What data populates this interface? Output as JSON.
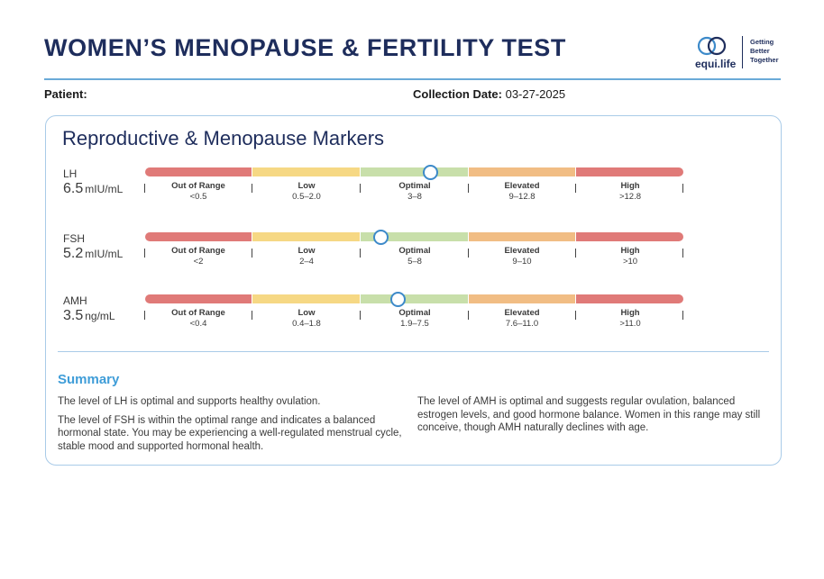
{
  "header": {
    "title": "WOMEN’S MENOPAUSE & FERTILITY TEST",
    "logo_word": "equi.life",
    "logo_tagline": [
      "Getting",
      "Better",
      "Together"
    ]
  },
  "patient": {
    "label": "Patient:",
    "value": ""
  },
  "collection": {
    "label": "Collection Date:",
    "value": "03-27-2025"
  },
  "section": {
    "title": "Reproductive & Menopause Markers"
  },
  "zone_labels": [
    "Out of Range",
    "Low",
    "Optimal",
    "Elevated",
    "High"
  ],
  "markers": [
    {
      "name": "LH",
      "value": "6.5",
      "unit": "mIU/mL",
      "ranges": [
        "<0.5",
        "0.5–2.0",
        "3–8",
        "9–12.8",
        ">12.8"
      ],
      "position_fraction": 0.53
    },
    {
      "name": "FSH",
      "value": "5.2",
      "unit": "mIU/mL",
      "ranges": [
        "<2",
        "2–4",
        "5–8",
        "9–10",
        ">10"
      ],
      "position_fraction": 0.438
    },
    {
      "name": "AMH",
      "value": "3.5",
      "unit": "ng/mL",
      "ranges": [
        "<0.4",
        "0.4–1.8",
        "1.9–7.5",
        "7.6–11.0",
        ">11.0"
      ],
      "position_fraction": 0.469
    }
  ],
  "summary": {
    "title": "Summary",
    "left": [
      "The level of LH is optimal and supports healthy ovulation.",
      "The level of FSH is within the optimal range and indicates a balanced hormonal state. You may be experiencing a well-regulated menstrual cycle, stable mood and supported hormonal health."
    ],
    "right": [
      "The level of AMH is optimal and suggests regular ovulation, balanced estrogen levels, and good hormone balance. Women in this range may still conceive, though AMH naturally declines with age."
    ]
  },
  "colors": {
    "navy": "#1e2d5c",
    "accent_blue": "#3f9dd8",
    "out_of_range": "#e07a78",
    "low": "#f6d884",
    "optimal": "#c8dfaa",
    "elevated": "#f1bd84",
    "high": "#e07a78"
  }
}
